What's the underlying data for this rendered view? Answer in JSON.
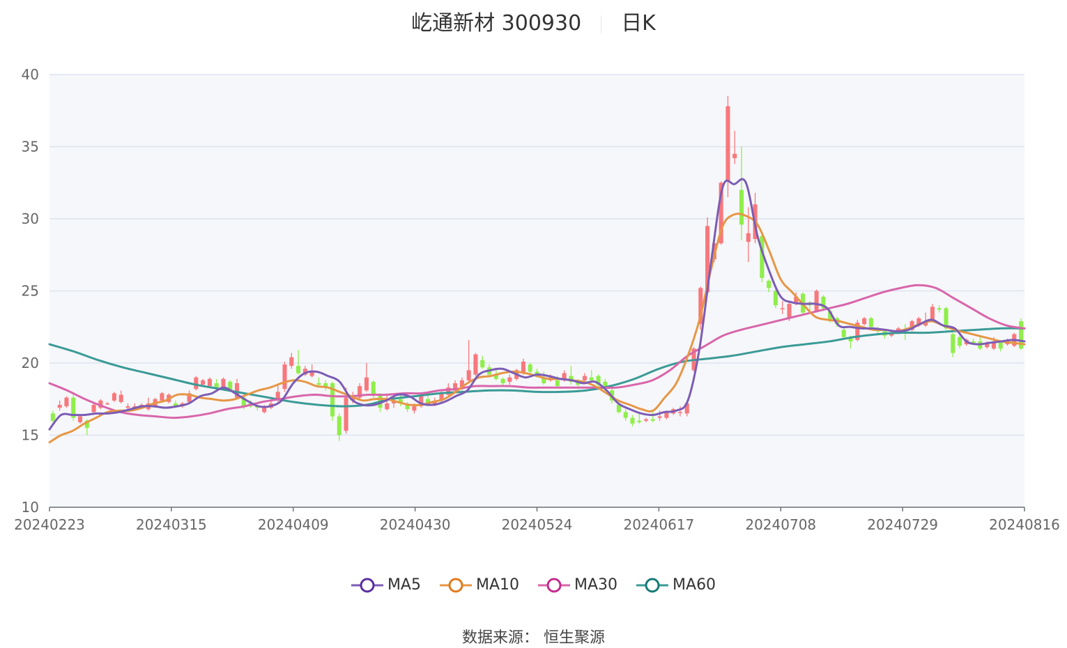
{
  "title": {
    "name": "屹通新材 300930",
    "period": "日K"
  },
  "source": "数据来源： 恒生聚源",
  "colors": {
    "up": "#f7787c",
    "down": "#8fee4a",
    "ma5": "#7b5cb5",
    "ma10": "#e69645",
    "ma30": "#d865aa",
    "ma60": "#3a9a96",
    "plot_bg": "#f6f7fa",
    "grid": "#dbe3f0"
  },
  "chart_data": {
    "type": "candlestick",
    "ylim": [
      10,
      40
    ],
    "yticks": [
      "10",
      "15",
      "20",
      "25",
      "30",
      "35",
      "40"
    ],
    "xticks": [
      "20240223",
      "20240315",
      "20240409",
      "20240430",
      "20240524",
      "20240617",
      "20240708",
      "20240729",
      "20240816"
    ],
    "legend": [
      "MA5",
      "MA10",
      "MA30",
      "MA60"
    ],
    "candles": [
      [
        16.5,
        16.0,
        16.7,
        15.9
      ],
      [
        16.9,
        17.1,
        17.4,
        16.7
      ],
      [
        17.0,
        17.6,
        17.7,
        16.9
      ],
      [
        17.6,
        16.2,
        17.8,
        16.0
      ],
      [
        15.9,
        16.3,
        16.4,
        15.8
      ],
      [
        16.0,
        15.5,
        16.1,
        15.0
      ],
      [
        16.6,
        17.1,
        17.2,
        16.5
      ],
      [
        16.9,
        17.4,
        17.5,
        16.8
      ],
      [
        17.2,
        17.2,
        17.3,
        17.1
      ],
      [
        17.4,
        17.9,
        18.0,
        17.3
      ],
      [
        17.3,
        17.8,
        18.1,
        17.2
      ],
      [
        16.9,
        17.0,
        17.2,
        16.8
      ],
      [
        16.8,
        17.0,
        17.2,
        16.7
      ],
      [
        16.9,
        17.1,
        17.2,
        16.8
      ],
      [
        16.8,
        17.2,
        17.6,
        16.7
      ],
      [
        17.0,
        17.5,
        17.6,
        16.9
      ],
      [
        17.4,
        17.9,
        18.0,
        17.3
      ],
      [
        17.3,
        17.8,
        17.9,
        17.2
      ],
      [
        17.2,
        17.0,
        17.4,
        16.9
      ],
      [
        17.0,
        17.2,
        17.3,
        16.9
      ],
      [
        17.3,
        17.9,
        18.1,
        17.2
      ],
      [
        18.2,
        19.0,
        19.1,
        18.1
      ],
      [
        18.5,
        18.8,
        18.9,
        18.4
      ],
      [
        18.4,
        18.9,
        19.0,
        18.3
      ],
      [
        18.6,
        18.3,
        18.9,
        18.0
      ],
      [
        18.3,
        18.9,
        19.0,
        18.2
      ],
      [
        18.7,
        18.1,
        18.8,
        18.0
      ],
      [
        17.6,
        18.6,
        18.9,
        17.5
      ],
      [
        17.6,
        17.0,
        17.8,
        16.8
      ],
      [
        17.2,
        17.0,
        17.4,
        16.9
      ],
      [
        17.0,
        16.9,
        17.1,
        16.7
      ],
      [
        16.6,
        17.0,
        17.1,
        16.5
      ],
      [
        16.9,
        17.2,
        17.4,
        16.8
      ],
      [
        17.4,
        18.0,
        18.5,
        17.3
      ],
      [
        18.2,
        19.9,
        20.1,
        18.0
      ],
      [
        19.8,
        20.4,
        20.7,
        19.6
      ],
      [
        19.8,
        19.3,
        20.9,
        19.2
      ],
      [
        19.2,
        19.6,
        19.8,
        19.1
      ],
      [
        19.1,
        19.4,
        19.9,
        19.0
      ],
      [
        18.6,
        18.5,
        19.0,
        18.3
      ],
      [
        18.6,
        18.3,
        18.8,
        18.1
      ],
      [
        18.6,
        16.3,
        18.7,
        16.0
      ],
      [
        16.3,
        15.0,
        16.5,
        14.6
      ],
      [
        15.3,
        17.6,
        18.3,
        15.1
      ],
      [
        17.4,
        17.6,
        18.0,
        17.2
      ],
      [
        17.6,
        18.4,
        18.6,
        17.5
      ],
      [
        18.1,
        19.0,
        20.0,
        18.0
      ],
      [
        18.7,
        17.8,
        18.8,
        17.6
      ],
      [
        17.8,
        16.9,
        17.9,
        16.6
      ],
      [
        16.8,
        17.2,
        17.8,
        16.7
      ],
      [
        17.2,
        17.4,
        17.7,
        16.9
      ],
      [
        17.5,
        17.2,
        17.8,
        17.0
      ],
      [
        17.1,
        16.8,
        17.3,
        16.6
      ],
      [
        16.7,
        17.0,
        17.2,
        16.5
      ],
      [
        17.0,
        17.7,
        17.8,
        16.9
      ],
      [
        17.5,
        17.1,
        18.0,
        17.0
      ],
      [
        17.1,
        17.3,
        17.6,
        17.0
      ],
      [
        17.4,
        17.9,
        18.1,
        17.3
      ],
      [
        17.8,
        18.3,
        18.6,
        17.7
      ],
      [
        18.1,
        18.6,
        18.8,
        18.0
      ],
      [
        18.2,
        18.8,
        19.0,
        18.1
      ],
      [
        18.8,
        19.5,
        21.6,
        18.7
      ],
      [
        19.2,
        20.6,
        20.7,
        19.1
      ],
      [
        20.2,
        19.7,
        20.5,
        19.6
      ],
      [
        19.7,
        19.2,
        19.9,
        19.0
      ],
      [
        19.2,
        18.9,
        19.5,
        18.8
      ],
      [
        18.9,
        18.6,
        19.0,
        18.4
      ],
      [
        18.7,
        19.0,
        19.2,
        18.5
      ],
      [
        18.9,
        19.5,
        19.6,
        18.8
      ],
      [
        19.3,
        20.1,
        20.3,
        19.2
      ],
      [
        19.9,
        19.4,
        20.0,
        19.2
      ],
      [
        19.4,
        19.2,
        19.6,
        19.0
      ],
      [
        19.0,
        18.6,
        19.4,
        18.5
      ],
      [
        18.8,
        19.0,
        19.2,
        18.7
      ],
      [
        18.8,
        18.4,
        19.1,
        18.3
      ],
      [
        18.9,
        19.3,
        19.5,
        18.7
      ],
      [
        19.1,
        18.7,
        19.8,
        18.5
      ],
      [
        18.8,
        18.5,
        18.9,
        18.2
      ],
      [
        18.8,
        19.1,
        19.3,
        18.6
      ],
      [
        19.0,
        18.8,
        19.5,
        18.7
      ],
      [
        19.1,
        18.5,
        19.2,
        18.3
      ],
      [
        18.7,
        18.3,
        18.9,
        18.0
      ],
      [
        18.1,
        17.4,
        18.3,
        17.2
      ],
      [
        17.1,
        16.6,
        17.3,
        16.5
      ],
      [
        16.6,
        16.2,
        16.8,
        16.0
      ],
      [
        16.2,
        15.8,
        16.4,
        15.6
      ],
      [
        16.0,
        15.9,
        16.5,
        15.8
      ],
      [
        16.0,
        16.1,
        16.2,
        15.9
      ],
      [
        16.1,
        16.0,
        16.6,
        15.9
      ],
      [
        16.2,
        16.3,
        16.7,
        16.0
      ],
      [
        16.2,
        16.6,
        16.7,
        16.1
      ],
      [
        16.5,
        16.8,
        16.9,
        16.4
      ],
      [
        16.6,
        16.6,
        17.0,
        16.3
      ],
      [
        16.5,
        17.2,
        17.3,
        16.3
      ],
      [
        19.5,
        21.0,
        21.1,
        19.4
      ],
      [
        22.7,
        25.2,
        25.3,
        22.3
      ],
      [
        24.9,
        29.5,
        30.1,
        24.7
      ],
      [
        27.2,
        28.3,
        28.4,
        27.0
      ],
      [
        28.3,
        32.5,
        32.6,
        28.2
      ],
      [
        32.6,
        37.8,
        38.5,
        31.5
      ],
      [
        34.2,
        34.5,
        36.1,
        33.8
      ],
      [
        32.0,
        29.6,
        35.0,
        28.5
      ],
      [
        28.4,
        29.0,
        30.8,
        27.0
      ],
      [
        28.6,
        31.0,
        31.8,
        28.3
      ],
      [
        28.8,
        25.9,
        28.9,
        25.6
      ],
      [
        25.7,
        25.2,
        25.8,
        24.9
      ],
      [
        25.0,
        24.0,
        25.1,
        23.8
      ],
      [
        23.8,
        23.8,
        24.3,
        23.4
      ],
      [
        23.1,
        24.1,
        24.3,
        22.9
      ],
      [
        24.2,
        24.6,
        24.9,
        24.0
      ],
      [
        24.8,
        23.5,
        24.9,
        23.3
      ],
      [
        24.2,
        24.0,
        24.3,
        23.6
      ],
      [
        23.6,
        25.0,
        25.1,
        23.5
      ],
      [
        24.6,
        23.8,
        24.7,
        23.6
      ],
      [
        23.6,
        23.0,
        23.7,
        22.8
      ],
      [
        23.1,
        22.7,
        23.2,
        22.5
      ],
      [
        22.3,
        21.8,
        22.5,
        21.6
      ],
      [
        21.8,
        21.5,
        21.9,
        21.0
      ],
      [
        21.6,
        22.8,
        23.0,
        21.5
      ],
      [
        22.7,
        23.1,
        23.2,
        22.6
      ],
      [
        23.1,
        22.5,
        23.2,
        22.4
      ],
      [
        22.4,
        22.2,
        22.5,
        22.0
      ],
      [
        22.2,
        21.9,
        22.3,
        21.7
      ],
      [
        21.9,
        22.1,
        22.3,
        21.8
      ],
      [
        22.2,
        22.4,
        22.5,
        22.0
      ],
      [
        22.2,
        22.1,
        22.7,
        21.6
      ],
      [
        22.3,
        22.9,
        23.0,
        22.2
      ],
      [
        22.6,
        23.1,
        23.2,
        22.5
      ],
      [
        22.6,
        22.9,
        23.5,
        22.5
      ],
      [
        23.0,
        23.9,
        24.1,
        22.9
      ],
      [
        23.8,
        23.7,
        24.0,
        23.5
      ],
      [
        23.8,
        22.4,
        23.9,
        22.3
      ],
      [
        22.0,
        20.7,
        22.1,
        20.4
      ],
      [
        21.8,
        21.2,
        21.9,
        21.0
      ],
      [
        21.3,
        21.6,
        21.7,
        21.2
      ],
      [
        21.5,
        21.4,
        21.7,
        21.3
      ],
      [
        21.5,
        21.0,
        21.9,
        20.9
      ],
      [
        21.1,
        21.4,
        21.5,
        21.0
      ],
      [
        21.0,
        21.5,
        21.8,
        20.9
      ],
      [
        21.4,
        21.0,
        21.5,
        20.8
      ],
      [
        21.3,
        21.6,
        21.7,
        21.2
      ],
      [
        21.2,
        22.0,
        22.1,
        21.1
      ],
      [
        22.9,
        21.0,
        23.1,
        20.9
      ]
    ],
    "ma5": [
      15.4,
      16.4,
      16.4,
      16.4,
      16.5,
      16.5,
      16.6,
      16.8,
      17.0,
      17.0,
      16.9,
      17.0,
      17.2,
      17.7,
      17.9,
      18.3,
      17.9,
      17.4,
      17.0,
      17.0,
      17.4,
      18.6,
      19.3,
      19.4,
      19.1,
      18.7,
      17.5,
      17.1,
      17.1,
      17.4,
      17.8,
      17.7,
      17.2,
      17.1,
      17.3,
      17.7,
      18.1,
      19.2,
      19.5,
      19.6,
      19.3,
      19.0,
      19.2,
      19.1,
      18.9,
      18.8,
      18.6,
      18.7,
      18.1,
      17.2,
      16.8,
      16.5,
      16.4,
      16.6,
      16.7,
      17.4,
      21.0,
      27.0,
      32.2,
      32.4,
      32.5,
      28.8,
      26.4,
      24.6,
      24.2,
      24.1,
      24.1,
      23.8,
      22.6,
      22.5,
      22.4,
      22.4,
      22.3,
      22.2,
      22.3,
      22.7,
      23.0,
      22.6,
      22.4,
      21.5,
      21.3,
      21.4,
      21.5,
      21.6,
      21.5
    ],
    "ma10": [
      14.5,
      15.0,
      15.3,
      15.8,
      16.2,
      16.6,
      16.7,
      16.7,
      16.9,
      17.2,
      17.4,
      17.8,
      17.8,
      17.6,
      17.5,
      17.4,
      17.5,
      17.8,
      18.1,
      18.3,
      18.6,
      18.8,
      18.7,
      18.4,
      18.3,
      18.0,
      17.7,
      17.4,
      17.5,
      17.5,
      17.3,
      17.1,
      17.1,
      17.3,
      17.5,
      18.0,
      18.6,
      19.0,
      19.1,
      19.3,
      19.4,
      19.3,
      19.1,
      18.9,
      18.9,
      18.8,
      18.7,
      18.4,
      17.9,
      17.4,
      17.1,
      16.8,
      16.7,
      17.6,
      18.6,
      20.5,
      23.0,
      26.5,
      29.5,
      30.3,
      30.2,
      29.6,
      27.8,
      25.8,
      24.9,
      24.0,
      23.2,
      23.0,
      22.9,
      22.7,
      22.5,
      22.3,
      22.3,
      22.2,
      22.4,
      22.7,
      22.9,
      22.6,
      22.3,
      22.1,
      21.9,
      21.7,
      21.5,
      21.4,
      21.3
    ],
    "ma30": [
      18.6,
      18.1,
      17.5,
      17.0,
      16.6,
      16.4,
      16.3,
      16.2,
      16.3,
      16.5,
      16.8,
      17.0,
      17.3,
      17.5,
      17.7,
      17.8,
      17.7,
      17.7,
      17.8,
      17.8,
      17.9,
      17.9,
      18.1,
      18.2,
      18.4,
      18.4,
      18.4,
      18.3,
      18.3,
      18.3,
      18.3,
      18.3,
      18.3,
      18.5,
      18.8,
      19.5,
      20.5,
      21.2,
      21.9,
      22.3,
      22.6,
      22.9,
      23.2,
      23.5,
      23.8,
      24.1,
      24.5,
      24.9,
      25.2,
      25.4,
      25.2,
      24.5,
      23.8,
      23.1,
      22.6,
      22.4
    ],
    "ma60": [
      21.3,
      20.8,
      20.2,
      19.7,
      19.3,
      18.9,
      18.5,
      18.2,
      17.9,
      17.6,
      17.3,
      17.1,
      17.0,
      17.1,
      17.5,
      17.7,
      17.9,
      18.0,
      18.1,
      18.1,
      18.0,
      18.0,
      18.1,
      18.4,
      18.9,
      19.6,
      20.1,
      20.3,
      20.5,
      20.8,
      21.1,
      21.3,
      21.5,
      21.8,
      22.0,
      22.1,
      22.1,
      22.2,
      22.3,
      22.4,
      22.4
    ]
  }
}
